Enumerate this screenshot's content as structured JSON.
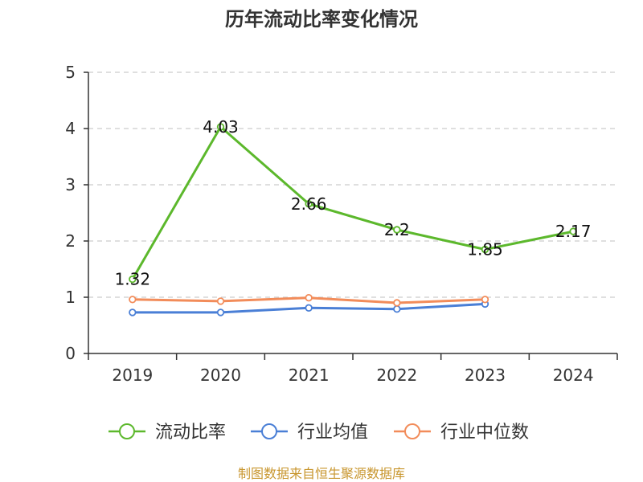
{
  "chart_data": {
    "type": "line",
    "title": "历年流动比率变化情况",
    "categories": [
      "2019",
      "2020",
      "2021",
      "2022",
      "2023",
      "2024"
    ],
    "ylim": [
      0,
      5
    ],
    "yticks": [
      0,
      1,
      2,
      3,
      4,
      5
    ],
    "grid": true,
    "legend_position": "bottom",
    "series": [
      {
        "name": "流动比率",
        "color": "#5cb82c",
        "values": [
          1.32,
          4.03,
          2.66,
          2.2,
          1.85,
          2.17
        ],
        "labels": [
          "1.32",
          "4.03",
          "2.66",
          "2.2",
          "1.85",
          "2.17"
        ]
      },
      {
        "name": "行业均值",
        "color": "#4a7fd6",
        "values": [
          0.73,
          0.73,
          0.81,
          0.79,
          0.88,
          null
        ]
      },
      {
        "name": "行业中位数",
        "color": "#f28c5a",
        "values": [
          0.96,
          0.93,
          0.99,
          0.9,
          0.96,
          null
        ]
      }
    ]
  },
  "source": {
    "text": "制图数据来自恒生聚源数据库",
    "color": "#c8962e"
  }
}
